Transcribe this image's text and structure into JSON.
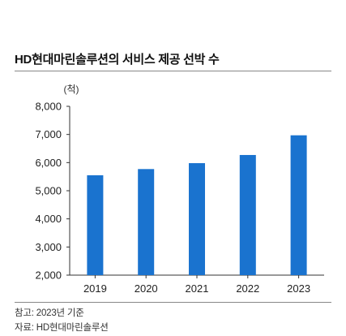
{
  "title": "HD현대마린솔루션의 서비스 제공 선박 수",
  "chart_data": {
    "type": "bar",
    "unit_label": "(척)",
    "categories": [
      "2019",
      "2020",
      "2021",
      "2022",
      "2023"
    ],
    "series": [
      {
        "values": [
          5550,
          5770,
          5980,
          6270,
          6970
        ]
      }
    ],
    "ylim": [
      2000,
      8000
    ],
    "yticks": [
      2000,
      3000,
      4000,
      5000,
      6000,
      7000,
      8000
    ],
    "ytick_labels": [
      "2,000",
      "3,000",
      "4,000",
      "5,000",
      "6,000",
      "7,000",
      "8,000"
    ],
    "bar_color": "#1a73cf",
    "grid": false
  },
  "footnotes": {
    "note": "참고: 2023년 기준",
    "source": "자료: HD현대마린솔루션"
  }
}
